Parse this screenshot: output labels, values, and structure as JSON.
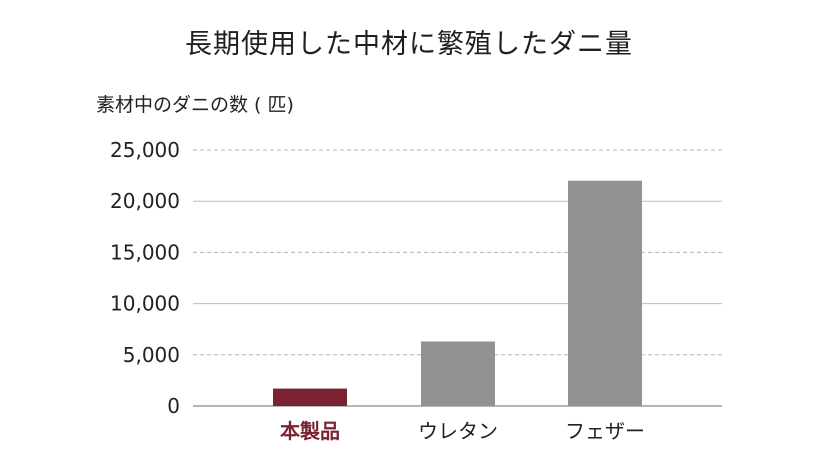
{
  "chart_data": {
    "type": "bar",
    "title": "長期使用した中材に繁殖したダニ量",
    "ylabel": "素材中のダニの数 ( 匹)",
    "xlabel": "",
    "categories": [
      "本製品",
      "ウレタン",
      "フェザー"
    ],
    "values": [
      1700,
      6300,
      22000
    ],
    "ylim": [
      0,
      25000
    ],
    "yticks": [
      "0",
      "5,000",
      "10,000",
      "15,000",
      "20,000",
      "25,000"
    ],
    "grid": true,
    "colors": {
      "highlight": "#7a2232",
      "default": "#929292",
      "grid_dashed": "#b5b5b5",
      "grid_solid": "#bdbdbd"
    }
  }
}
